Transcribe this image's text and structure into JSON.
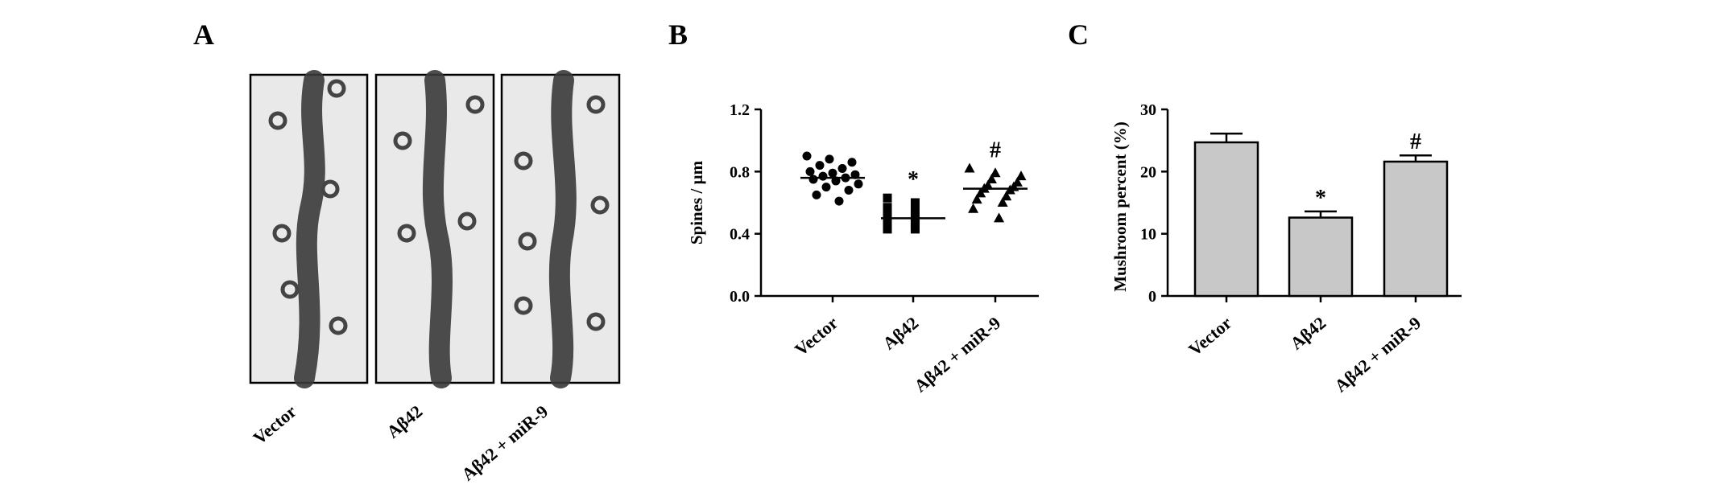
{
  "panels": {
    "a": "A",
    "b": "B",
    "c": "C"
  },
  "colors": {
    "bar_fill": "#c8c8c8",
    "ink": "#000000",
    "micrograph_bg": "#e9e9e9",
    "dendrite": "#3a3a3a"
  },
  "micrographs": {
    "labels": [
      "Vector",
      "Aβ42",
      "Aβ42 + miR-9"
    ]
  },
  "chart_data": [
    {
      "panel": "B",
      "type": "scatter",
      "ylabel": "Spines / µm",
      "xlabel": "",
      "categories": [
        "Vector",
        "Aβ42",
        "Aβ42 + miR-9"
      ],
      "yticks": [
        "0.0",
        "0.4",
        "0.8",
        "1.2"
      ],
      "ylim": [
        0,
        1.2
      ],
      "grid": false,
      "markers": [
        "circle",
        "square",
        "triangle"
      ],
      "means": [
        0.76,
        0.5,
        0.69
      ],
      "points": [
        [
          0.9,
          0.88,
          0.86,
          0.84,
          0.82,
          0.8,
          0.79,
          0.78,
          0.77,
          0.76,
          0.75,
          0.74,
          0.72,
          0.7,
          0.68,
          0.65,
          0.61
        ],
        [
          0.63,
          0.6,
          0.57,
          0.55,
          0.53,
          0.51,
          0.5,
          0.49,
          0.47,
          0.46,
          0.45,
          0.44,
          0.43,
          0.43
        ],
        [
          0.82,
          0.79,
          0.77,
          0.75,
          0.73,
          0.71,
          0.7,
          0.69,
          0.68,
          0.66,
          0.64,
          0.62,
          0.6,
          0.56,
          0.5
        ]
      ],
      "annotations": [
        "",
        "*",
        "#"
      ]
    },
    {
      "panel": "C",
      "type": "bar",
      "ylabel": "Mushroom percent (%)",
      "xlabel": "",
      "categories": [
        "Vector",
        "Aβ42",
        "Aβ42 + miR-9"
      ],
      "values": [
        24.7,
        12.6,
        21.6
      ],
      "errors": [
        1.4,
        1.0,
        1.0
      ],
      "yticks": [
        "0",
        "10",
        "20",
        "30"
      ],
      "ylim": [
        0,
        30
      ],
      "grid": false,
      "annotations": [
        "",
        "*",
        "#"
      ]
    }
  ]
}
